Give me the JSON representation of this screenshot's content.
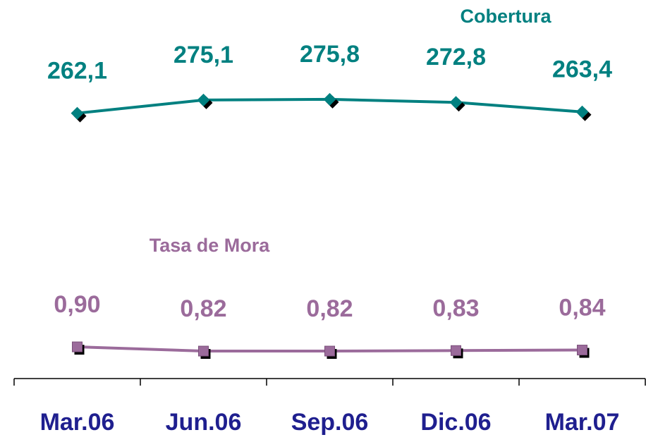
{
  "chart_data": {
    "type": "line",
    "categories": [
      "Mar.06",
      "Jun.06",
      "Sep.06",
      "Dic.06",
      "Mar.07"
    ],
    "series": [
      {
        "name": "Cobertura",
        "color": "#008080",
        "values": [
          262.1,
          275.1,
          275.8,
          272.8,
          263.4
        ],
        "value_labels": [
          "262,1",
          "275,1",
          "275,8",
          "272,8",
          "263,4"
        ]
      },
      {
        "name": "Tasa de Mora",
        "color": "#9b6b9b",
        "axis": "y2",
        "values": [
          0.9,
          0.82,
          0.82,
          0.83,
          0.84
        ],
        "value_labels": [
          "0,90",
          "0,82",
          "0,82",
          "0,83",
          "0,84"
        ]
      }
    ],
    "ylim": [
      0,
      360
    ],
    "y2lim": [
      0.3,
      7.2
    ],
    "category_color": "#1f1f8f"
  }
}
